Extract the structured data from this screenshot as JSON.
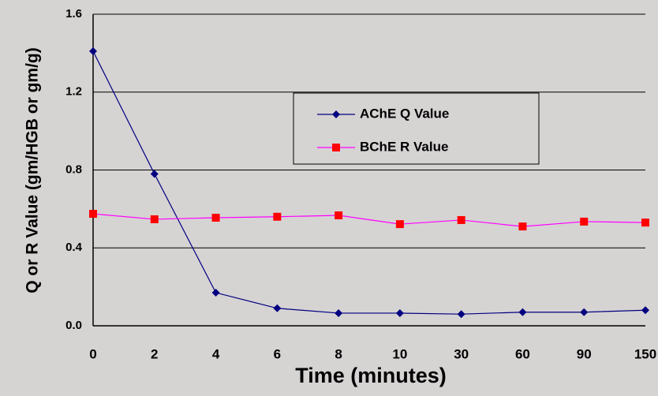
{
  "chart_data": {
    "type": "line",
    "x_label": "Time (minutes)",
    "y_label": "Q or R Value (gm/HGB or gm/g)",
    "categories": [
      "0",
      "2",
      "4",
      "6",
      "8",
      "10",
      "30",
      "60",
      "90",
      "150"
    ],
    "series": [
      {
        "name": "AChE Q Value",
        "color": "#000080",
        "marker": "diamond",
        "marker_color": "#000080",
        "values": [
          1.41,
          0.78,
          0.17,
          0.09,
          0.065,
          0.065,
          0.06,
          0.07,
          0.07,
          0.08
        ]
      },
      {
        "name": "BChE R Value",
        "color": "#ff00ff",
        "marker": "square",
        "marker_color": "#ff0000",
        "values": [
          0.575,
          0.547,
          0.555,
          0.56,
          0.567,
          0.522,
          0.543,
          0.51,
          0.535,
          0.53
        ]
      }
    ],
    "ylim": [
      0,
      1.6
    ],
    "yticks": [
      {
        "value": 0,
        "label": "0.0"
      },
      0.4,
      0.8,
      1.2,
      1.6
    ],
    "grid": true,
    "legend": "upper-right"
  }
}
